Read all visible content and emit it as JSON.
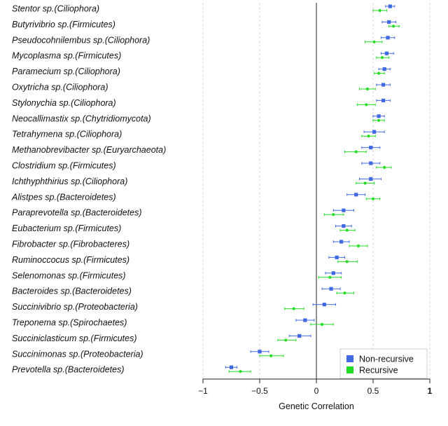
{
  "chart_data": {
    "type": "scatter",
    "subtype": "dot-and-whisker",
    "title": "",
    "xlabel": "Genetic Correlation",
    "ylabel": "",
    "xlim": [
      -1,
      1
    ],
    "xticks": [
      -1,
      -0.5,
      0,
      0.5,
      1
    ],
    "xtick_labels": [
      "−1",
      "−0.5",
      "0",
      "0.5",
      "1"
    ],
    "reference_line": 0,
    "grid": "vertical dashed",
    "legend_position": "bottom-right",
    "categories": [
      "Stentor sp.(Ciliophora)",
      "Butyrivibrio sp.(Firmicutes)",
      "Pseudocohnilembus sp.(Ciliophora)",
      "Mycoplasma sp.(Firmicutes)",
      "Paramecium sp.(Ciliophora)",
      "Oxytricha sp.(Ciliophora)",
      "Stylonychia sp.(Ciliophora)",
      "Neocallimastix sp.(Chytridiomycota)",
      "Tetrahymena sp.(Ciliophora)",
      "Methanobrevibacter sp.(Euryarchaeota)",
      "Clostridium sp.(Firmicutes)",
      "Ichthyphthirius sp.(Ciliophora)",
      "Alistpes sp.(Bacteroidetes)",
      "Paraprevotella sp.(Bacteroidetes)",
      "Eubacterium sp.(Firmicutes)",
      "Fibrobacter sp.(Fibrobacteres)",
      "Ruminoccocus sp.(Firmicutes)",
      "Selenomonas sp.(Firmicutes)",
      "Bacteroides sp.(Bacteroidetes)",
      "Succinivibrio sp.(Proteobacteria)",
      "Treponema sp.(Spirochaetes)",
      "Succiniclasticum sp.(Firmicutes)",
      "Succinimonas sp.(Proteobacteria)",
      "Prevotella sp.(Bacteroidetes)"
    ],
    "series": [
      {
        "name": "Non-recursive",
        "color": "#4169e1",
        "values": [
          0.65,
          0.64,
          0.63,
          0.62,
          0.6,
          0.59,
          0.59,
          0.55,
          0.51,
          0.48,
          0.48,
          0.48,
          0.35,
          0.24,
          0.24,
          0.22,
          0.18,
          0.15,
          0.13,
          0.07,
          -0.1,
          -0.15,
          -0.5,
          -0.75
        ],
        "lower": [
          0.61,
          0.58,
          0.57,
          0.57,
          0.55,
          0.53,
          0.53,
          0.5,
          0.42,
          0.4,
          0.4,
          0.38,
          0.27,
          0.15,
          0.17,
          0.15,
          0.11,
          0.08,
          0.05,
          -0.03,
          -0.18,
          -0.24,
          -0.58,
          -0.8
        ],
        "upper": [
          0.69,
          0.7,
          0.69,
          0.68,
          0.65,
          0.65,
          0.65,
          0.6,
          0.6,
          0.56,
          0.56,
          0.57,
          0.43,
          0.33,
          0.31,
          0.29,
          0.25,
          0.22,
          0.21,
          0.17,
          -0.02,
          -0.05,
          -0.42,
          -0.7
        ]
      },
      {
        "name": "Recursive",
        "color": "#22dd22",
        "values": [
          0.56,
          0.68,
          0.51,
          0.58,
          0.55,
          0.45,
          0.44,
          0.55,
          0.46,
          0.35,
          0.6,
          0.43,
          0.5,
          0.15,
          0.27,
          0.37,
          0.27,
          0.12,
          0.25,
          -0.2,
          0.05,
          -0.27,
          -0.4,
          -0.67
        ],
        "lower": [
          0.5,
          0.64,
          0.43,
          0.53,
          0.51,
          0.38,
          0.36,
          0.5,
          0.4,
          0.25,
          0.53,
          0.35,
          0.44,
          0.07,
          0.21,
          0.29,
          0.19,
          0.02,
          0.18,
          -0.28,
          -0.05,
          -0.34,
          -0.5,
          -0.77
        ],
        "upper": [
          0.62,
          0.73,
          0.58,
          0.64,
          0.6,
          0.52,
          0.52,
          0.6,
          0.52,
          0.44,
          0.66,
          0.51,
          0.56,
          0.24,
          0.34,
          0.45,
          0.36,
          0.22,
          0.33,
          -0.11,
          0.15,
          -0.18,
          -0.29,
          -0.58
        ]
      }
    ]
  }
}
